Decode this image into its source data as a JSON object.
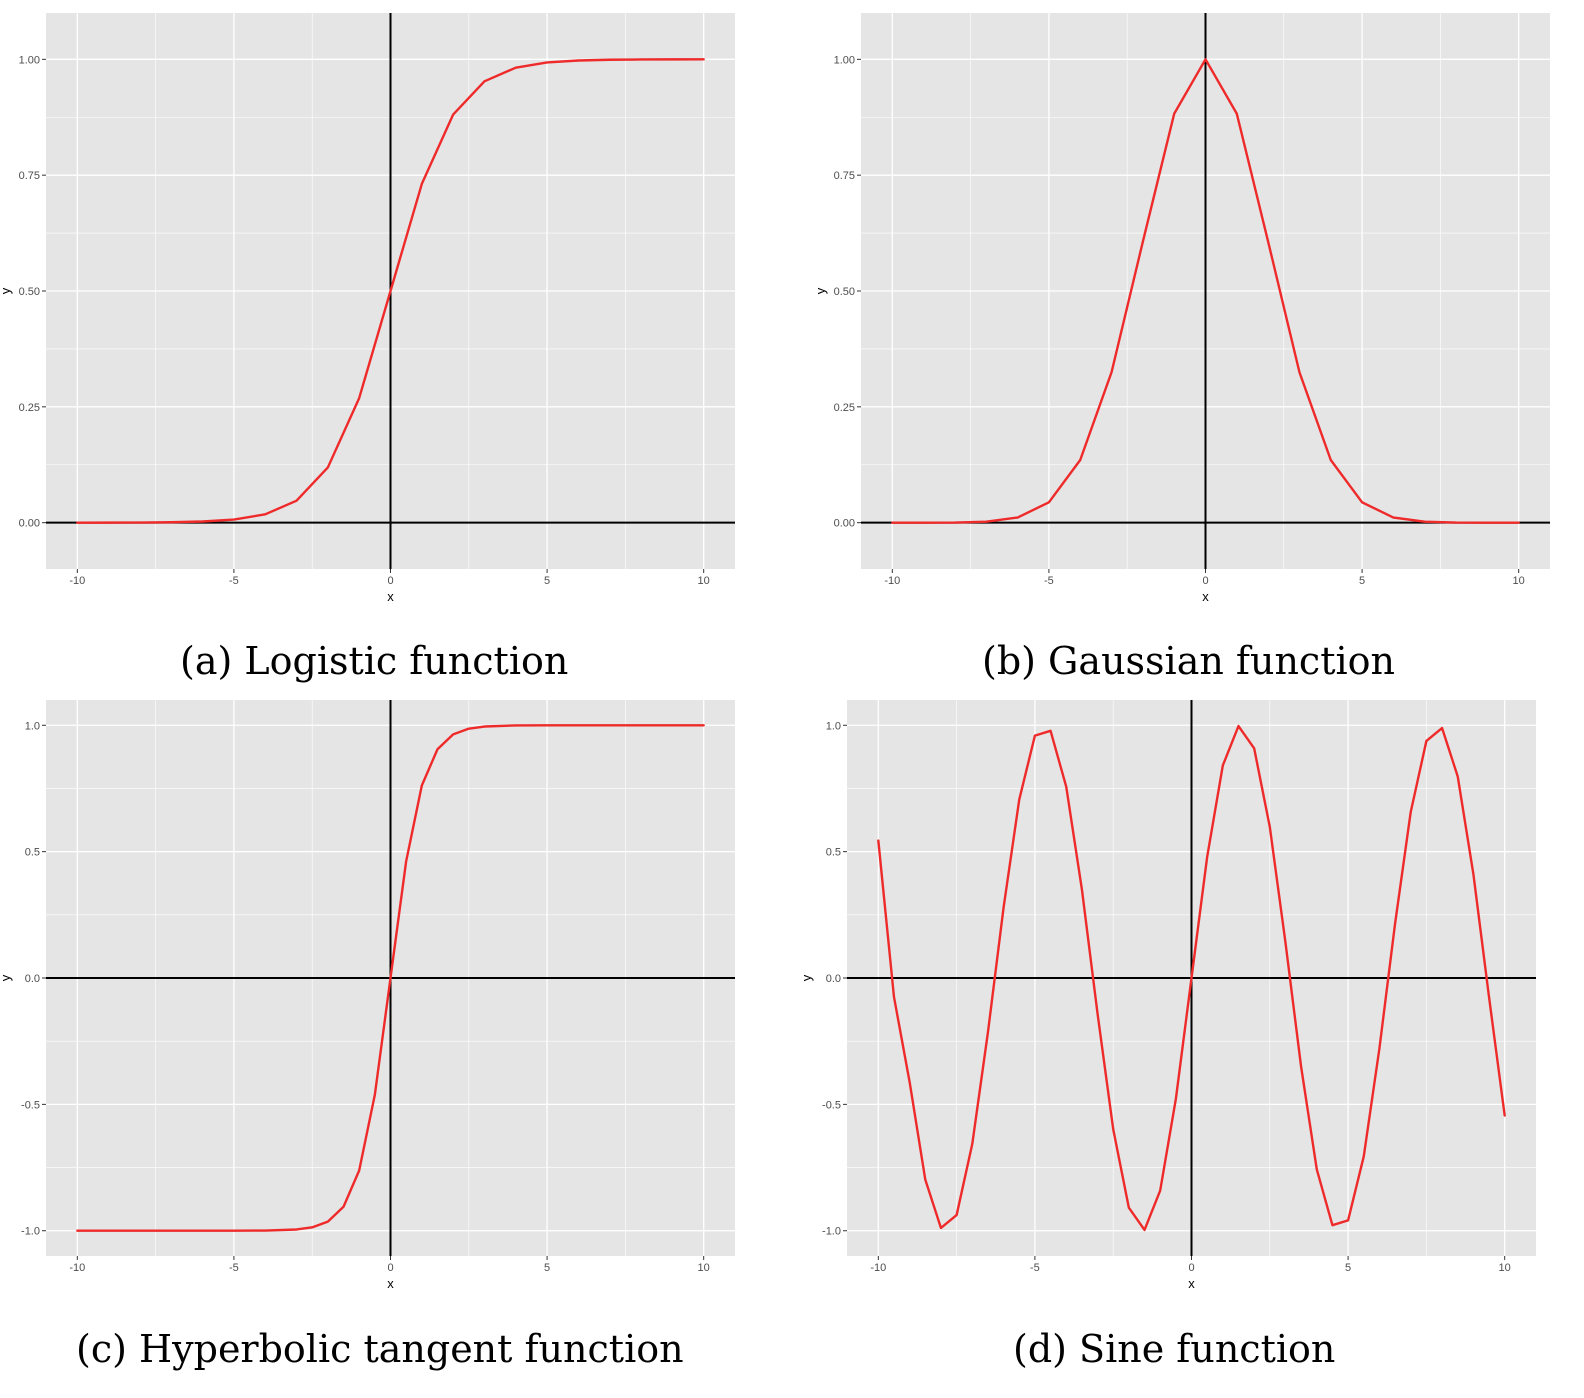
{
  "colors": {
    "panel_background": "#e5e5e5",
    "gridline": "#ffffff",
    "axis_line": "#000000",
    "curve": "#ee2a2a",
    "tick_label": "#4d4d4d"
  },
  "captions": [
    "(a) Logistic function",
    "(b) Gaussian function",
    "(c) Hyperbolic tangent function",
    "(d) Sine function"
  ],
  "chart_data": [
    {
      "type": "line",
      "caption": "(a) Logistic function",
      "xlabel": "x",
      "ylabel": "y",
      "xlim": [
        -11,
        11
      ],
      "ylim": [
        -0.1,
        1.1
      ],
      "x_ticks": [
        -10,
        -5,
        0,
        5,
        10
      ],
      "x_tick_labels": [
        "-10",
        "-5",
        "0",
        "5",
        "10"
      ],
      "y_ticks": [
        0,
        0.25,
        0.5,
        0.75,
        1
      ],
      "y_tick_labels": [
        "0.00",
        "0.25",
        "0.50",
        "0.75",
        "1.00"
      ],
      "grid": true,
      "reference_lines": {
        "x": 0,
        "y": 0
      },
      "series": [
        {
          "color": "#ee2a2a",
          "x": [
            -10,
            -9,
            -8,
            -7,
            -6,
            -5,
            -4,
            -3,
            -2,
            -1,
            0,
            1,
            2,
            3,
            4,
            5,
            6,
            7,
            8,
            9,
            10
          ],
          "y": [
            0,
            0.0001,
            0.0003,
            0.0009,
            0.0025,
            0.0067,
            0.018,
            0.0474,
            0.1192,
            0.2689,
            0.5,
            0.7311,
            0.8808,
            0.9526,
            0.982,
            0.9933,
            0.9975,
            0.9991,
            0.9997,
            0.9999,
            1
          ]
        }
      ]
    },
    {
      "type": "line",
      "caption": "(b) Gaussian function",
      "xlabel": "x",
      "ylabel": "y",
      "xlim": [
        -11,
        11
      ],
      "ylim": [
        -0.1,
        1.1
      ],
      "x_ticks": [
        -10,
        -5,
        0,
        5,
        10
      ],
      "x_tick_labels": [
        "-10",
        "-5",
        "0",
        "5",
        "10"
      ],
      "y_ticks": [
        0,
        0.25,
        0.5,
        0.75,
        1
      ],
      "y_tick_labels": [
        "0.00",
        "0.25",
        "0.50",
        "0.75",
        "1.00"
      ],
      "grid": true,
      "reference_lines": {
        "x": 0,
        "y": 0
      },
      "series": [
        {
          "color": "#ee2a2a",
          "x": [
            -10,
            -9,
            -8,
            -7,
            -6,
            -5,
            -4,
            -3,
            -2,
            -1,
            0,
            1,
            2,
            3,
            4,
            5,
            6,
            7,
            8,
            9,
            10
          ],
          "y": [
            0,
            0,
            0.0003,
            0.0022,
            0.0111,
            0.0439,
            0.1353,
            0.3247,
            0.6065,
            0.8825,
            1,
            0.8825,
            0.6065,
            0.3247,
            0.1353,
            0.0439,
            0.0111,
            0.0022,
            0.0003,
            0,
            0
          ]
        }
      ]
    },
    {
      "type": "line",
      "caption": "(c) Hyperbolic tangent function",
      "xlabel": "x",
      "ylabel": "y",
      "xlim": [
        -11,
        11
      ],
      "ylim": [
        -1.1,
        1.1
      ],
      "x_ticks": [
        -10,
        -5,
        0,
        5,
        10
      ],
      "x_tick_labels": [
        "-10",
        "-5",
        "0",
        "5",
        "10"
      ],
      "y_ticks": [
        -1,
        -0.5,
        0,
        0.5,
        1
      ],
      "y_tick_labels": [
        "-1.0",
        "-0.5",
        "0.0",
        "0.5",
        "1.0"
      ],
      "grid": true,
      "reference_lines": {
        "x": 0,
        "y": 0
      },
      "series": [
        {
          "color": "#ee2a2a",
          "x": [
            -10,
            -8,
            -6,
            -5,
            -4,
            -3,
            -2.5,
            -2,
            -1.5,
            -1,
            -0.5,
            0,
            0.5,
            1,
            1.5,
            2,
            2.5,
            3,
            4,
            5,
            6,
            8,
            10
          ],
          "y": [
            -1,
            -1,
            -1,
            -0.9999,
            -0.9993,
            -0.9951,
            -0.9866,
            -0.964,
            -0.9051,
            -0.7616,
            -0.4621,
            0,
            0.4621,
            0.7616,
            0.9051,
            0.964,
            0.9866,
            0.9951,
            0.9993,
            0.9999,
            1,
            1,
            1
          ]
        }
      ]
    },
    {
      "type": "line",
      "caption": "(d) Sine function",
      "xlabel": "x",
      "ylabel": "y",
      "xlim": [
        -11,
        11
      ],
      "ylim": [
        -1.1,
        1.1
      ],
      "x_ticks": [
        -10,
        -5,
        0,
        5,
        10
      ],
      "x_tick_labels": [
        "-10",
        "-5",
        "0",
        "5",
        "10"
      ],
      "y_ticks": [
        -1,
        -0.5,
        0,
        0.5,
        1
      ],
      "y_tick_labels": [
        "-1.0",
        "-0.5",
        "0.0",
        "0.5",
        "1.0"
      ],
      "grid": true,
      "reference_lines": {
        "x": 0,
        "y": 0
      },
      "series": [
        {
          "color": "#ee2a2a",
          "x": [
            -10,
            -9.5,
            -9,
            -8.5,
            -8,
            -7.5,
            -7,
            -6.5,
            -6,
            -5.5,
            -5,
            -4.5,
            -4,
            -3.5,
            -3,
            -2.5,
            -2,
            -1.5,
            -1,
            -0.5,
            0,
            0.5,
            1,
            1.5,
            2,
            2.5,
            3,
            3.5,
            4,
            4.5,
            5,
            5.5,
            6,
            6.5,
            7,
            7.5,
            8,
            8.5,
            9,
            9.5,
            10
          ],
          "y": [
            0.544,
            -0.075,
            -0.412,
            -0.798,
            -0.989,
            -0.938,
            -0.657,
            -0.215,
            0.279,
            0.706,
            0.959,
            0.978,
            0.757,
            0.351,
            -0.141,
            -0.598,
            -0.909,
            -0.997,
            -0.841,
            -0.479,
            0,
            0.479,
            0.841,
            0.997,
            0.909,
            0.598,
            0.141,
            -0.351,
            -0.757,
            -0.978,
            -0.959,
            -0.706,
            -0.279,
            0.215,
            0.657,
            0.938,
            0.989,
            0.798,
            0.412,
            -0.075,
            -0.544
          ]
        }
      ]
    }
  ]
}
